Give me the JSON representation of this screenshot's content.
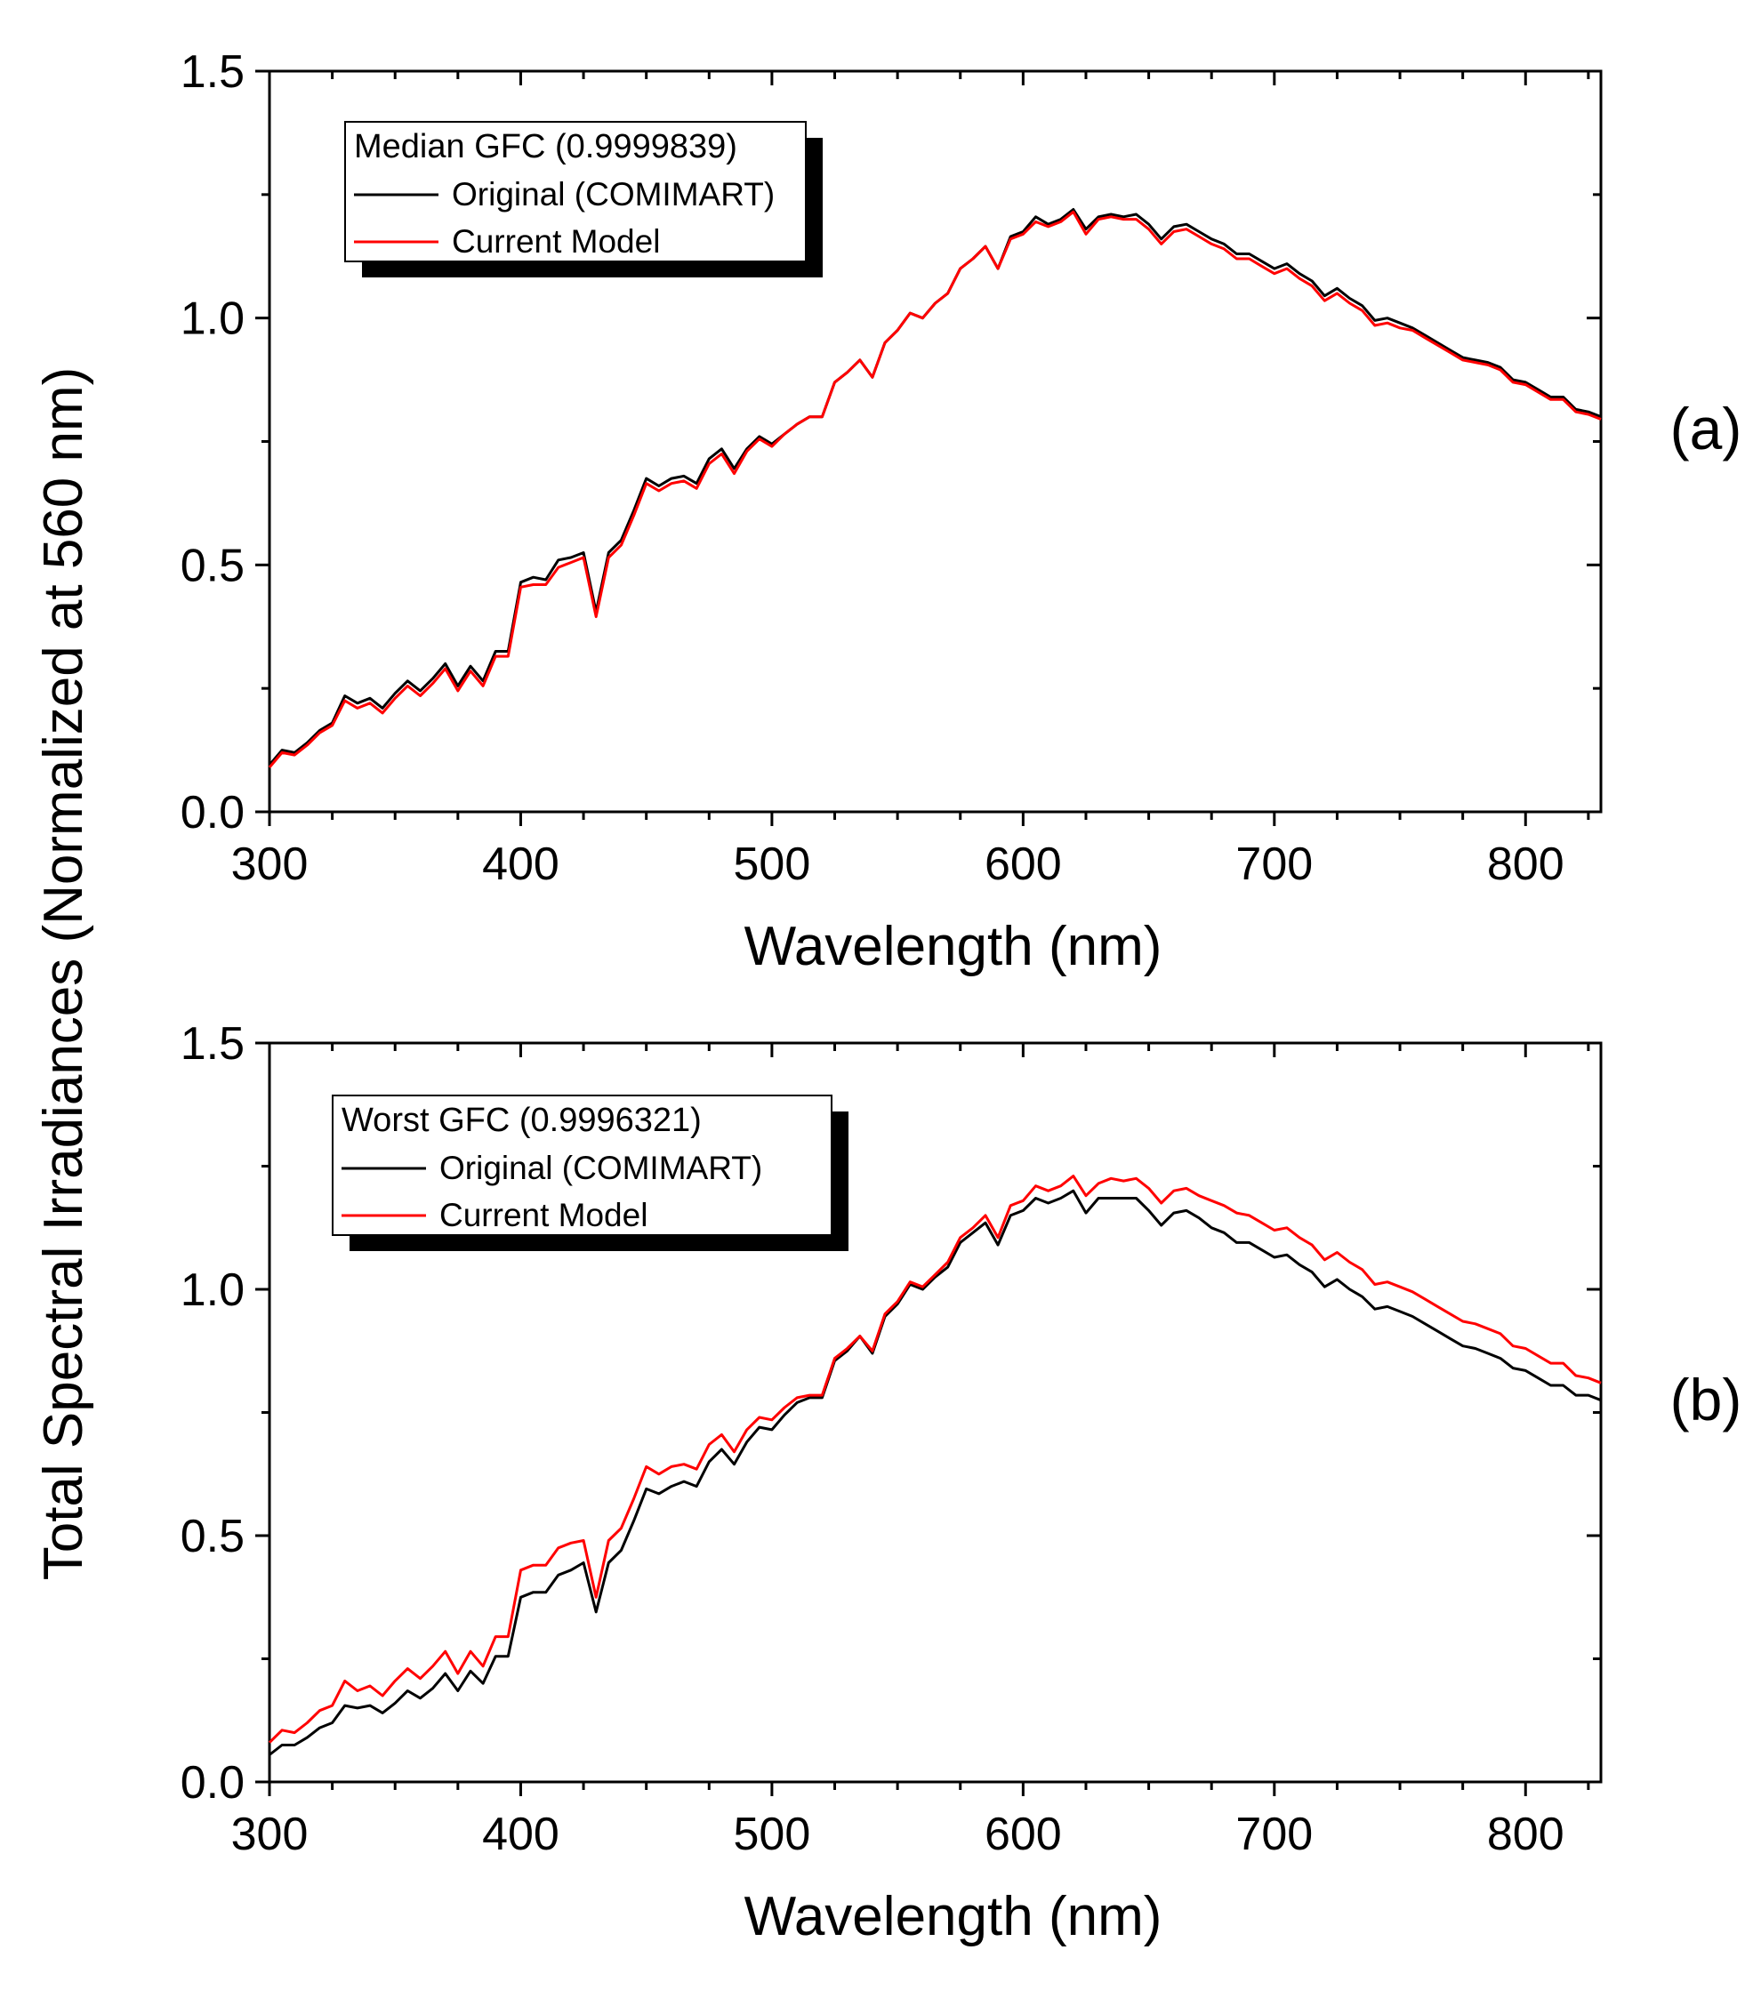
{
  "figure": {
    "shared_ylabel": "Total Spectral Irradiances (Normalized at 560 nm)"
  },
  "chart_data": [
    {
      "type": "line",
      "panel_label": "(a)",
      "title": "",
      "xlabel": "Wavelength (nm)",
      "ylabel": "Total Spectral Irradiances (Normalized at 560 nm)",
      "xlim": [
        300,
        830
      ],
      "ylim": [
        0.0,
        1.5
      ],
      "xticks": [
        300,
        400,
        500,
        600,
        700,
        800
      ],
      "xtick_labels": [
        "300",
        "400",
        "500",
        "600",
        "700",
        "800"
      ],
      "yticks": [
        0.0,
        0.5,
        1.0,
        1.5
      ],
      "ytick_labels": [
        "0.0",
        "0.5",
        "1.0",
        "1.5"
      ],
      "grid": false,
      "legend": {
        "placement": "top-left",
        "title": "Median GFC (0.9999839)",
        "entries": [
          "Original (COMIMART)",
          "Current Model"
        ]
      },
      "x": [
        300,
        305,
        310,
        315,
        320,
        325,
        330,
        335,
        340,
        345,
        350,
        355,
        360,
        365,
        370,
        375,
        380,
        385,
        390,
        395,
        400,
        405,
        410,
        415,
        420,
        425,
        430,
        435,
        440,
        445,
        450,
        455,
        460,
        465,
        470,
        475,
        480,
        485,
        490,
        495,
        500,
        505,
        510,
        515,
        520,
        525,
        530,
        535,
        540,
        545,
        550,
        555,
        560,
        565,
        570,
        575,
        580,
        585,
        590,
        595,
        600,
        605,
        610,
        615,
        620,
        625,
        630,
        635,
        640,
        645,
        650,
        655,
        660,
        665,
        670,
        675,
        680,
        685,
        690,
        695,
        700,
        705,
        710,
        715,
        720,
        725,
        730,
        735,
        740,
        745,
        750,
        755,
        760,
        765,
        770,
        775,
        780,
        785,
        790,
        795,
        800,
        805,
        810,
        815,
        820,
        825,
        830
      ],
      "series": [
        {
          "name": "Original (COMIMART)",
          "color": "#000000",
          "values": [
            0.095,
            0.125,
            0.12,
            0.14,
            0.165,
            0.18,
            0.235,
            0.22,
            0.23,
            0.21,
            0.24,
            0.265,
            0.245,
            0.27,
            0.3,
            0.255,
            0.295,
            0.265,
            0.325,
            0.325,
            0.465,
            0.475,
            0.47,
            0.51,
            0.515,
            0.525,
            0.405,
            0.525,
            0.55,
            0.61,
            0.675,
            0.66,
            0.675,
            0.68,
            0.665,
            0.715,
            0.735,
            0.695,
            0.735,
            0.76,
            0.745,
            0.765,
            0.785,
            0.8,
            0.8,
            0.87,
            0.89,
            0.915,
            0.88,
            0.95,
            0.975,
            1.01,
            1.0,
            1.03,
            1.05,
            1.1,
            1.12,
            1.145,
            1.1,
            1.165,
            1.175,
            1.205,
            1.19,
            1.2,
            1.22,
            1.18,
            1.205,
            1.21,
            1.205,
            1.21,
            1.19,
            1.16,
            1.185,
            1.19,
            1.175,
            1.16,
            1.15,
            1.13,
            1.13,
            1.115,
            1.1,
            1.11,
            1.09,
            1.075,
            1.045,
            1.06,
            1.04,
            1.025,
            0.995,
            1.0,
            0.99,
            0.98,
            0.965,
            0.95,
            0.935,
            0.92,
            0.915,
            0.91,
            0.9,
            0.875,
            0.87,
            0.855,
            0.84,
            0.84,
            0.815,
            0.81,
            0.8
          ]
        },
        {
          "name": "Current Model",
          "color": "#ff0000",
          "values": [
            0.09,
            0.12,
            0.115,
            0.135,
            0.16,
            0.175,
            0.225,
            0.21,
            0.22,
            0.2,
            0.23,
            0.255,
            0.235,
            0.26,
            0.29,
            0.245,
            0.285,
            0.255,
            0.315,
            0.315,
            0.455,
            0.46,
            0.46,
            0.495,
            0.505,
            0.515,
            0.395,
            0.515,
            0.54,
            0.6,
            0.665,
            0.65,
            0.665,
            0.67,
            0.655,
            0.705,
            0.725,
            0.685,
            0.73,
            0.755,
            0.74,
            0.765,
            0.785,
            0.8,
            0.8,
            0.87,
            0.89,
            0.915,
            0.88,
            0.95,
            0.975,
            1.01,
            1.0,
            1.03,
            1.05,
            1.1,
            1.12,
            1.145,
            1.1,
            1.16,
            1.17,
            1.195,
            1.185,
            1.195,
            1.215,
            1.17,
            1.2,
            1.205,
            1.2,
            1.2,
            1.18,
            1.15,
            1.175,
            1.18,
            1.165,
            1.15,
            1.14,
            1.12,
            1.12,
            1.105,
            1.09,
            1.1,
            1.08,
            1.065,
            1.035,
            1.05,
            1.03,
            1.015,
            0.985,
            0.99,
            0.98,
            0.975,
            0.96,
            0.945,
            0.93,
            0.915,
            0.91,
            0.905,
            0.895,
            0.87,
            0.865,
            0.85,
            0.835,
            0.835,
            0.81,
            0.805,
            0.795
          ]
        }
      ]
    },
    {
      "type": "line",
      "panel_label": "(b)",
      "title": "",
      "xlabel": "Wavelength (nm)",
      "ylabel": "Total Spectral Irradiances (Normalized at 560 nm)",
      "xlim": [
        300,
        830
      ],
      "ylim": [
        0.0,
        1.5
      ],
      "xticks": [
        300,
        400,
        500,
        600,
        700,
        800
      ],
      "xtick_labels": [
        "300",
        "400",
        "500",
        "600",
        "700",
        "800"
      ],
      "yticks": [
        0.0,
        0.5,
        1.0,
        1.5
      ],
      "ytick_labels": [
        "0.0",
        "0.5",
        "1.0",
        "1.5"
      ],
      "grid": false,
      "legend": {
        "placement": "top-left",
        "title": "Worst GFC (0.9996321)",
        "entries": [
          "Original (COMIMART)",
          "Current Model"
        ]
      },
      "x": [
        300,
        305,
        310,
        315,
        320,
        325,
        330,
        335,
        340,
        345,
        350,
        355,
        360,
        365,
        370,
        375,
        380,
        385,
        390,
        395,
        400,
        405,
        410,
        415,
        420,
        425,
        430,
        435,
        440,
        445,
        450,
        455,
        460,
        465,
        470,
        475,
        480,
        485,
        490,
        495,
        500,
        505,
        510,
        515,
        520,
        525,
        530,
        535,
        540,
        545,
        550,
        555,
        560,
        565,
        570,
        575,
        580,
        585,
        590,
        595,
        600,
        605,
        610,
        615,
        620,
        625,
        630,
        635,
        640,
        645,
        650,
        655,
        660,
        665,
        670,
        675,
        680,
        685,
        690,
        695,
        700,
        705,
        710,
        715,
        720,
        725,
        730,
        735,
        740,
        745,
        750,
        755,
        760,
        765,
        770,
        775,
        780,
        785,
        790,
        795,
        800,
        805,
        810,
        815,
        820,
        825,
        830
      ],
      "series": [
        {
          "name": "Original (COMIMART)",
          "color": "#000000",
          "values": [
            0.055,
            0.075,
            0.075,
            0.09,
            0.11,
            0.12,
            0.155,
            0.15,
            0.155,
            0.14,
            0.16,
            0.185,
            0.17,
            0.19,
            0.22,
            0.185,
            0.225,
            0.2,
            0.255,
            0.255,
            0.375,
            0.385,
            0.385,
            0.42,
            0.43,
            0.445,
            0.345,
            0.445,
            0.47,
            0.53,
            0.595,
            0.585,
            0.6,
            0.61,
            0.6,
            0.65,
            0.675,
            0.645,
            0.69,
            0.72,
            0.715,
            0.745,
            0.77,
            0.78,
            0.78,
            0.855,
            0.875,
            0.905,
            0.87,
            0.945,
            0.97,
            1.01,
            1.0,
            1.025,
            1.045,
            1.095,
            1.115,
            1.135,
            1.09,
            1.15,
            1.16,
            1.185,
            1.175,
            1.185,
            1.2,
            1.155,
            1.185,
            1.185,
            1.185,
            1.185,
            1.16,
            1.13,
            1.155,
            1.16,
            1.145,
            1.125,
            1.115,
            1.095,
            1.095,
            1.08,
            1.065,
            1.07,
            1.05,
            1.035,
            1.005,
            1.02,
            1.0,
            0.985,
            0.96,
            0.965,
            0.955,
            0.945,
            0.93,
            0.915,
            0.9,
            0.885,
            0.88,
            0.87,
            0.86,
            0.84,
            0.835,
            0.82,
            0.805,
            0.805,
            0.785,
            0.785,
            0.775
          ]
        },
        {
          "name": "Current Model",
          "color": "#ff0000",
          "values": [
            0.08,
            0.105,
            0.1,
            0.12,
            0.145,
            0.155,
            0.205,
            0.185,
            0.195,
            0.175,
            0.205,
            0.23,
            0.21,
            0.235,
            0.265,
            0.22,
            0.265,
            0.235,
            0.295,
            0.295,
            0.43,
            0.44,
            0.44,
            0.475,
            0.485,
            0.49,
            0.375,
            0.49,
            0.515,
            0.575,
            0.64,
            0.625,
            0.64,
            0.645,
            0.635,
            0.685,
            0.705,
            0.67,
            0.715,
            0.74,
            0.735,
            0.76,
            0.78,
            0.785,
            0.785,
            0.86,
            0.88,
            0.905,
            0.875,
            0.95,
            0.975,
            1.015,
            1.005,
            1.03,
            1.055,
            1.105,
            1.125,
            1.15,
            1.105,
            1.17,
            1.18,
            1.21,
            1.2,
            1.21,
            1.23,
            1.19,
            1.215,
            1.225,
            1.22,
            1.225,
            1.205,
            1.175,
            1.2,
            1.205,
            1.19,
            1.18,
            1.17,
            1.155,
            1.15,
            1.135,
            1.12,
            1.125,
            1.105,
            1.09,
            1.06,
            1.075,
            1.055,
            1.04,
            1.01,
            1.015,
            1.005,
            0.995,
            0.98,
            0.965,
            0.95,
            0.935,
            0.93,
            0.92,
            0.91,
            0.885,
            0.88,
            0.865,
            0.85,
            0.85,
            0.825,
            0.82,
            0.81
          ]
        }
      ]
    }
  ]
}
